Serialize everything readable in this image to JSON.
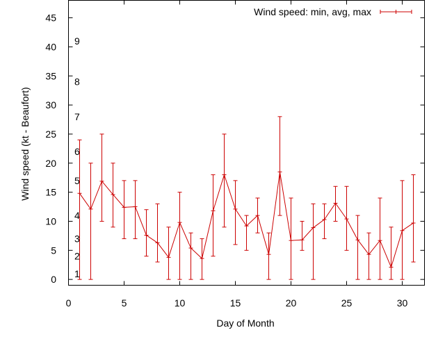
{
  "chart_data": {
    "type": "line",
    "title": "",
    "xlabel": "Day of Month",
    "ylabel": "Wind speed (kt - Beaufort)",
    "xlim": [
      0,
      32
    ],
    "ylim": [
      -1,
      48
    ],
    "x_ticks": [
      0,
      5,
      10,
      15,
      20,
      25,
      30
    ],
    "y_ticks": [
      0,
      5,
      10,
      15,
      20,
      25,
      30,
      35,
      40,
      45
    ],
    "x_tick_labels": [
      "0",
      "5",
      "10",
      "15",
      "20",
      "25",
      "30"
    ],
    "y_tick_labels": [
      "0",
      "5",
      "10",
      "15",
      "20",
      "25",
      "30",
      "35",
      "40",
      "45"
    ],
    "grid": false,
    "legend_position": "top-right",
    "beaufort_scale": {
      "labels": [
        "1",
        "2",
        "3",
        "4",
        "5",
        "6",
        "7",
        "8",
        "9"
      ],
      "y": [
        1,
        4,
        7,
        11,
        17,
        22,
        28,
        34,
        41
      ]
    },
    "series": [
      {
        "name": "Wind speed: min, avg, max",
        "color": "#cc0000",
        "x": [
          1,
          2,
          3,
          4,
          5,
          6,
          7,
          8,
          9,
          10,
          11,
          12,
          13,
          14,
          15,
          16,
          17,
          18,
          19,
          20,
          21,
          22,
          23,
          24,
          25,
          26,
          27,
          28,
          29,
          30,
          31
        ],
        "avg": [
          14.8,
          12.1,
          16.9,
          14.6,
          12.4,
          12.5,
          7.6,
          6.3,
          3.8,
          9.8,
          5.4,
          3.6,
          11.8,
          18.0,
          12.1,
          9.2,
          11.0,
          4.3,
          18.5,
          6.7,
          6.8,
          8.9,
          10.3,
          13.1,
          10.4,
          6.8,
          4.3,
          6.7,
          2.1,
          8.4,
          9.7
        ],
        "min": [
          0,
          0,
          10,
          9,
          7,
          7,
          4,
          3,
          0,
          0,
          0,
          0,
          4,
          9,
          6,
          5,
          8,
          0,
          11,
          0,
          5,
          0,
          7,
          10,
          5,
          0,
          0,
          0,
          0,
          0,
          3
        ],
        "max": [
          24,
          20,
          25,
          20,
          17,
          17,
          12,
          13,
          9,
          15,
          8,
          7,
          18,
          25,
          17,
          11,
          14,
          8,
          28,
          14,
          10,
          13,
          13,
          16,
          16,
          11,
          8,
          14,
          9,
          17,
          18
        ]
      }
    ]
  }
}
